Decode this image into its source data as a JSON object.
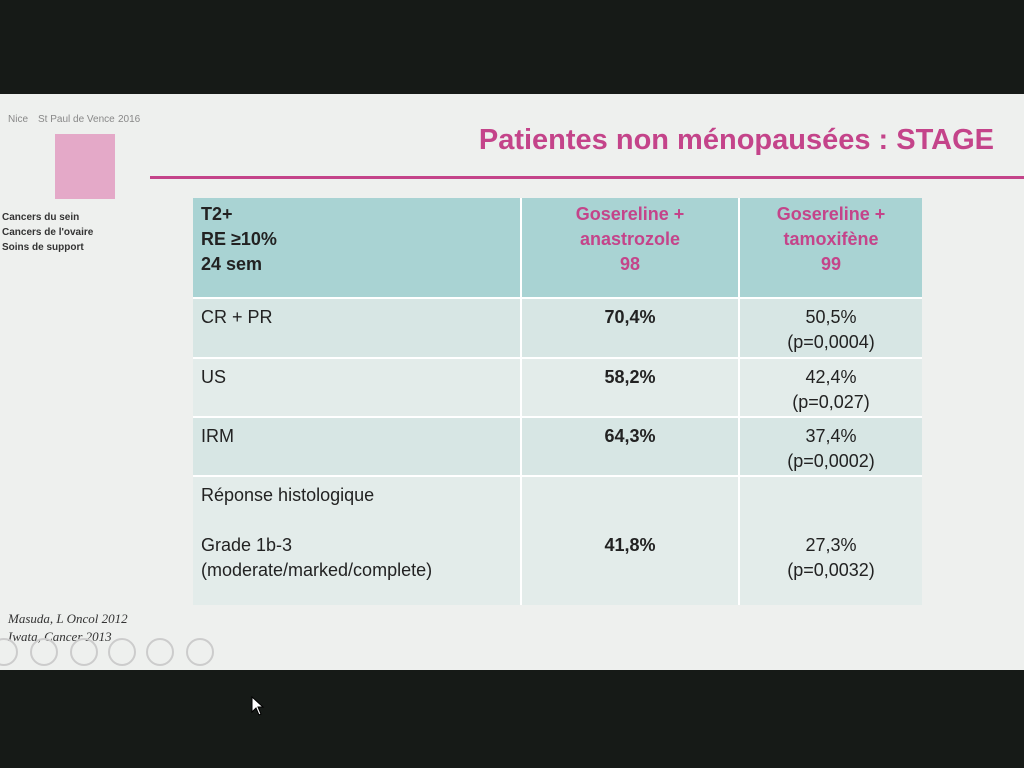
{
  "logo": {
    "place": "Nice",
    "venue": "St Paul de Vence",
    "year": "2016",
    "topics": [
      "Cancers du sein",
      "Cancers de l'ovaire",
      "Soins de support"
    ]
  },
  "title": "Patientes non ménopausées : STAGE",
  "table": {
    "header": [
      [
        "T2+",
        "RE ≥10%",
        "24 sem"
      ],
      [
        "Gosereline +",
        "anastrozole",
        "98"
      ],
      [
        "Gosereline +",
        "tamoxifène",
        "99"
      ]
    ],
    "rows": [
      [
        [
          "CR + PR"
        ],
        [
          "70,4%"
        ],
        [
          "50,5%",
          "(p=0,0004)"
        ]
      ],
      [
        [
          "US"
        ],
        [
          "58,2%"
        ],
        [
          "42,4%",
          "(p=0,027)"
        ]
      ],
      [
        [
          "IRM"
        ],
        [
          "64,3%"
        ],
        [
          "37,4%",
          "(p=0,0002)"
        ]
      ],
      [
        [
          "Réponse histologique",
          "Grade 1b-3",
          "(moderate/marked/complete)"
        ],
        [
          "41,8%"
        ],
        [
          "27,3%",
          "(p=0,0032)"
        ]
      ]
    ]
  },
  "references": [
    "Masuda, L Oncol 2012",
    "Iwata, Cancer 2013"
  ]
}
